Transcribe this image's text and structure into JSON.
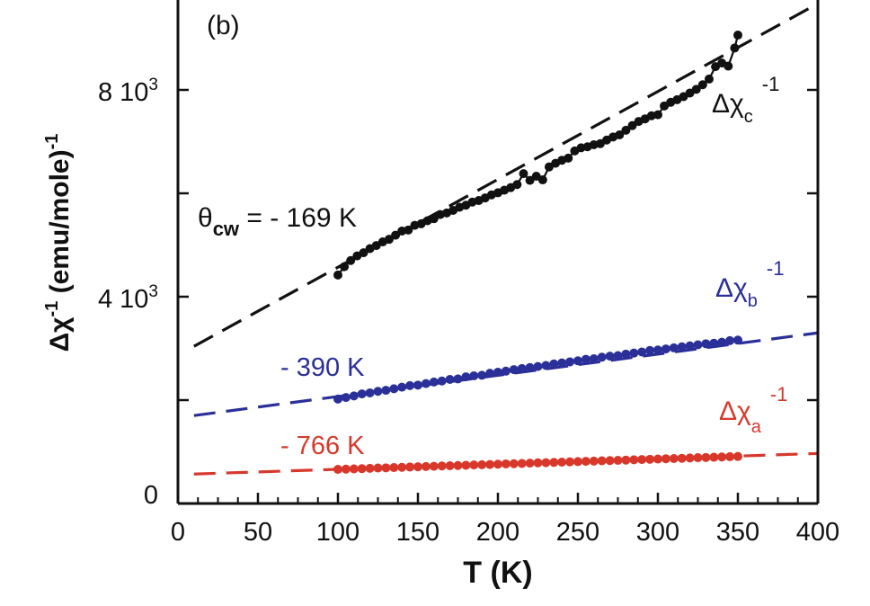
{
  "chart_data": {
    "type": "scatter",
    "panel_label": "(b)",
    "xlabel": "T (K)",
    "ylabel": {
      "prefix": "Δχ",
      "exponent": "-1",
      "suffix": " (emu/mole)",
      "suffix_exponent": "-1"
    },
    "xlim": [
      0,
      400
    ],
    "ylim": [
      0,
      10000
    ],
    "x_ticks": [
      0,
      50,
      100,
      150,
      200,
      250,
      300,
      350,
      400
    ],
    "x_tick_labels": [
      "0",
      "50",
      "100",
      "150",
      "200",
      "250",
      "300",
      "350",
      "400"
    ],
    "y_major_ticks": [
      0,
      2000,
      4000,
      6000,
      8000
    ],
    "y_tick_labels": [
      {
        "value": 0,
        "mantissa": "0",
        "exponent": ""
      },
      {
        "value": 4000,
        "mantissa": "4 10",
        "exponent": "3"
      },
      {
        "value": 8000,
        "mantissa": "8 10",
        "exponent": "3"
      }
    ],
    "colors": {
      "c": "#111111",
      "b": "#2b2f98",
      "a": "#d8382c"
    },
    "series": [
      {
        "id": "c",
        "name": "Δχc⁻¹",
        "label": {
          "base": "Δχ",
          "sub": "c",
          "sup": "-1"
        },
        "theta_label": {
          "symbol": "θ",
          "sub": "cw",
          "text": " = - 169 K"
        },
        "x": [
          100,
          104,
          108,
          112,
          116,
          120,
          124,
          128,
          132,
          136,
          140,
          144,
          148,
          152,
          156,
          160,
          164,
          168,
          172,
          176,
          180,
          184,
          188,
          192,
          196,
          200,
          204,
          208,
          212,
          216,
          220,
          224,
          228,
          232,
          236,
          240,
          244,
          248,
          252,
          256,
          260,
          264,
          268,
          272,
          276,
          280,
          284,
          288,
          292,
          296,
          300,
          304,
          308,
          312,
          316,
          320,
          324,
          328,
          332,
          336,
          340,
          344,
          348,
          350
        ],
        "values": [
          4420,
          4580,
          4700,
          4790,
          4850,
          4930,
          4990,
          5060,
          5110,
          5190,
          5270,
          5290,
          5380,
          5410,
          5470,
          5510,
          5590,
          5620,
          5670,
          5730,
          5770,
          5830,
          5860,
          5910,
          5970,
          6010,
          6060,
          6110,
          6170,
          6380,
          6250,
          6330,
          6260,
          6510,
          6580,
          6640,
          6680,
          6820,
          6880,
          6900,
          6940,
          6960,
          7030,
          7090,
          7130,
          7220,
          7310,
          7390,
          7440,
          7500,
          7520,
          7690,
          7760,
          7810,
          7870,
          7940,
          8010,
          8100,
          8210,
          8450,
          8520,
          8460,
          8810,
          9060
        ],
        "fit": {
          "slope": 17.0,
          "intercept": 2870,
          "x_range": [
            0,
            400
          ]
        },
        "connected": true
      },
      {
        "id": "b",
        "name": "Δχb⁻¹",
        "label": {
          "base": "Δχ",
          "sub": "b",
          "sup": "-1"
        },
        "theta_label": {
          "text": "- 390 K"
        },
        "x": [
          100,
          105,
          110,
          115,
          120,
          125,
          130,
          135,
          140,
          145,
          150,
          155,
          160,
          165,
          170,
          175,
          180,
          185,
          190,
          195,
          200,
          205,
          210,
          215,
          220,
          225,
          230,
          235,
          240,
          245,
          250,
          255,
          260,
          265,
          270,
          275,
          280,
          285,
          290,
          295,
          300,
          305,
          310,
          315,
          320,
          325,
          330,
          335,
          340,
          345,
          350
        ],
        "values": [
          2020,
          2050,
          2080,
          2120,
          2140,
          2170,
          2190,
          2220,
          2250,
          2280,
          2290,
          2320,
          2350,
          2370,
          2400,
          2410,
          2450,
          2470,
          2480,
          2520,
          2540,
          2560,
          2590,
          2610,
          2630,
          2650,
          2670,
          2700,
          2720,
          2740,
          2760,
          2790,
          2800,
          2830,
          2850,
          2860,
          2890,
          2910,
          2930,
          2960,
          2970,
          2990,
          3010,
          3030,
          3050,
          3070,
          3090,
          3100,
          3120,
          3150,
          3160
        ],
        "fit": {
          "slope": 4.1,
          "intercept": 1660,
          "x_range": [
            0,
            400
          ]
        },
        "connected": false
      },
      {
        "id": "a",
        "name": "Δχa⁻¹",
        "label": {
          "base": "Δχ",
          "sub": "a",
          "sup": "-1"
        },
        "theta_label": {
          "text": "- 766 K"
        },
        "x": [
          100,
          105,
          110,
          115,
          120,
          125,
          130,
          135,
          140,
          145,
          150,
          155,
          160,
          165,
          170,
          175,
          180,
          185,
          190,
          195,
          200,
          205,
          210,
          215,
          220,
          225,
          230,
          235,
          240,
          245,
          250,
          255,
          260,
          265,
          270,
          275,
          280,
          285,
          290,
          295,
          300,
          305,
          310,
          315,
          320,
          325,
          330,
          335,
          340,
          345,
          350
        ],
        "values": [
          660,
          665,
          670,
          675,
          680,
          686,
          690,
          695,
          700,
          706,
          710,
          715,
          720,
          726,
          730,
          735,
          740,
          746,
          750,
          755,
          760,
          766,
          770,
          775,
          780,
          786,
          790,
          795,
          800,
          806,
          810,
          815,
          820,
          826,
          830,
          835,
          840,
          846,
          850,
          855,
          860,
          866,
          870,
          875,
          880,
          886,
          890,
          895,
          900,
          906,
          910
        ],
        "fit": {
          "slope": 1.02,
          "intercept": 560,
          "x_range": [
            0,
            400
          ]
        },
        "connected": false
      }
    ]
  }
}
